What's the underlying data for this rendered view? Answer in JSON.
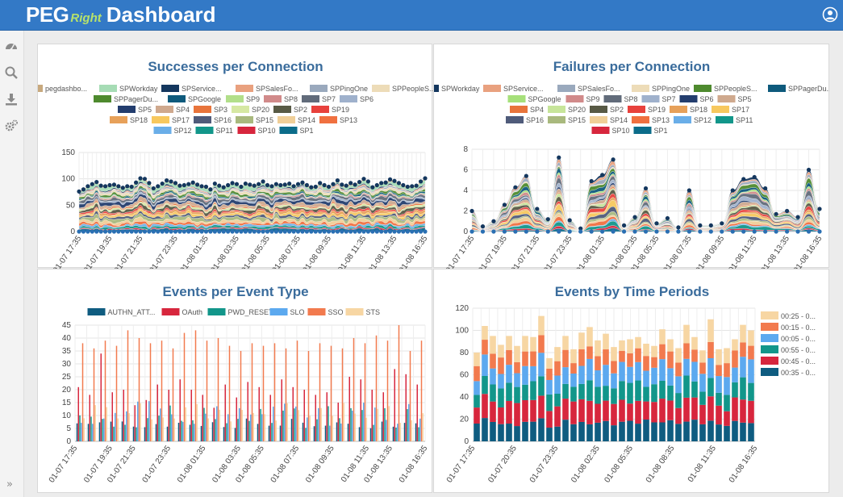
{
  "header": {
    "logo_peg": "PEG",
    "logo_right": "Right",
    "title": "Dashboard",
    "user_icon": "user-circle-icon"
  },
  "sidebar": {
    "items": [
      {
        "icon": "speedometer-icon"
      },
      {
        "icon": "search-icon"
      },
      {
        "icon": "download-icon"
      },
      {
        "icon": "gears-icon"
      }
    ],
    "expand_label": "»"
  },
  "colors": {
    "accent": "#3379c6",
    "title": "#3a6c9c"
  },
  "chart_data": [
    {
      "type": "area",
      "title": "Successes per Connection",
      "legend": [
        "pegdashbo...",
        "SPWorkday",
        "SPService...",
        "SPSalesFo...",
        "SPPingOne",
        "SPPeopleS...",
        "SPPagerDu...",
        "SPGoogle",
        "SP9",
        "SP8",
        "SP7",
        "SP6",
        "SP5",
        "SP4",
        "SP3",
        "SP20",
        "SP2",
        "SP19",
        "SP18",
        "SP17",
        "SP16",
        "SP15",
        "SP14",
        "SP13",
        "SP12",
        "SP11",
        "SP10",
        "SP1"
      ],
      "legend_colors": [
        "#c8a97e",
        "#a6dcb5",
        "#14375e",
        "#e9a17f",
        "#9aa9bd",
        "#eddcb8",
        "#4e8a2e",
        "#0e5a7c",
        "#b2df8a",
        "#d18a8a",
        "#616b7a",
        "#9fb1cc",
        "#233d6e",
        "#cfa98e",
        "#e8743b",
        "#d6e8a3",
        "#585a45",
        "#e8413c",
        "#e7a15a",
        "#f7c85e",
        "#4f5b7a",
        "#a9b97e",
        "#f0cf98",
        "#f07040",
        "#6aaee8",
        "#12968a",
        "#d7263d",
        "#0b6c8a"
      ],
      "x_ticks": [
        "01-07 17:35",
        "01-07 19:35",
        "01-07 21:35",
        "01-07 23:35",
        "01-08 01:35",
        "01-08 03:35",
        "01-08 05:35",
        "01-08 07:35",
        "01-08 09:35",
        "01-08 11:35",
        "01-08 13:35",
        "01-08 16:35"
      ],
      "ylim": [
        0,
        150
      ],
      "y_ticks": [
        0,
        50,
        100,
        150
      ],
      "totals": [
        76,
        80,
        86,
        90,
        94,
        87,
        86,
        88,
        89,
        86,
        83,
        86,
        85,
        93,
        101,
        100,
        92,
        82,
        86,
        91,
        97,
        95,
        92,
        87,
        88,
        90,
        93,
        89,
        86,
        85,
        80,
        91,
        87,
        84,
        88,
        92,
        90,
        85,
        91,
        89,
        87,
        90,
        95,
        88,
        86,
        90,
        88,
        89,
        91,
        86,
        90,
        93,
        88,
        84,
        85,
        92,
        88,
        85,
        90,
        97,
        89,
        87,
        92,
        89,
        94,
        100,
        95,
        84,
        88,
        92,
        93,
        99,
        96,
        92,
        88,
        85,
        86,
        87,
        95,
        101
      ],
      "grid": true
    },
    {
      "type": "area",
      "title": "Failures per Connection",
      "legend": [
        "SPWorkday",
        "SPService...",
        "SPSalesFo...",
        "SPPingOne",
        "SPPeopleS...",
        "SPPagerDu...",
        "SPGoogle",
        "SP9",
        "SP8",
        "SP7",
        "SP6",
        "SP5",
        "SP4",
        "SP20",
        "SP2",
        "SP19",
        "SP18",
        "SP17",
        "SP16",
        "SP15",
        "SP14",
        "SP13",
        "SP12",
        "SP11",
        "SP10",
        "SP1"
      ],
      "legend_colors": [
        "#14375e",
        "#e9a17f",
        "#9aa9bd",
        "#eddcb8",
        "#4e8a2e",
        "#0e5a7c",
        "#a6e07a",
        "#d18a8a",
        "#616b7a",
        "#9fb1cc",
        "#233d6e",
        "#cfa98e",
        "#e8743b",
        "#c7e59a",
        "#585a45",
        "#e8413c",
        "#e7a15a",
        "#f7c85e",
        "#4f5b7a",
        "#a9b97e",
        "#f0cf98",
        "#f07040",
        "#6aaee8",
        "#12968a",
        "#d7263d",
        "#0b6c8a"
      ],
      "x_ticks": [
        "01-07 17:35",
        "01-07 19:35",
        "01-07 21:35",
        "01-07 23:35",
        "01-08 01:35",
        "01-08 03:35",
        "01-08 05:35",
        "01-08 07:35",
        "01-08 09:35",
        "01-08 11:35",
        "01-08 13:35",
        "01-08 16:35"
      ],
      "ylim": [
        0,
        8
      ],
      "y_ticks": [
        0,
        2,
        4,
        6,
        8
      ],
      "totals": [
        2,
        0.5,
        1,
        2.6,
        4.3,
        5.4,
        2.2,
        1.2,
        7.2,
        1.1,
        0.3,
        4.9,
        5.5,
        7.0,
        0.6,
        1.4,
        4.2,
        0.8,
        1.3,
        0.4,
        4.0,
        0.6,
        0.6,
        0.8,
        4.0,
        5.1,
        5.3,
        4.2,
        1.7,
        2.0,
        1.4,
        6.0,
        2.2
      ],
      "grid": true
    },
    {
      "type": "bar",
      "title": "Events per Event Type",
      "legend": [
        "AUTHN_ATT...",
        "OAuth",
        "PWD_RESET",
        "SLO",
        "SSO",
        "STS"
      ],
      "legend_colors": [
        "#0f5c80",
        "#d7263d",
        "#12968a",
        "#5ca9ef",
        "#f27a4e",
        "#f7d6a3"
      ],
      "x_ticks": [
        "01-07 17:35",
        "01-07 19:35",
        "01-07 21:35",
        "01-07 23:35",
        "01-08 01:35",
        "01-08 03:35",
        "01-08 05:35",
        "01-08 07:35",
        "01-08 09:35",
        "01-08 11:35",
        "01-08 13:35",
        "01-08 16:35"
      ],
      "ylim": [
        0,
        45
      ],
      "y_ticks": [
        0,
        5,
        10,
        15,
        20,
        25,
        30,
        35,
        40,
        45
      ],
      "oauth": [
        21,
        18,
        34,
        19,
        20,
        14,
        16,
        22,
        20,
        24,
        20,
        18,
        13,
        22,
        17,
        23,
        21,
        18,
        24,
        21,
        20,
        18,
        19,
        15,
        25,
        24,
        20,
        19,
        28,
        26,
        22
      ],
      "sso": [
        38,
        36,
        39,
        37,
        43,
        40,
        38,
        39,
        36,
        42,
        43,
        39,
        40,
        37,
        35,
        38,
        37,
        38,
        36,
        39,
        35,
        38,
        37,
        36,
        40,
        38,
        41,
        39,
        45,
        35,
        39
      ],
      "grid": true
    },
    {
      "type": "bar",
      "title": "Events by Time Periods",
      "legend": [
        "00:25 - 0...",
        "00:15 - 0...",
        "00:05 - 0...",
        "00:55 - 0...",
        "00:45 - 0...",
        "00:35 - 0..."
      ],
      "legend_colors": [
        "#f7d6a3",
        "#f27a4e",
        "#5ca9ef",
        "#12968a",
        "#d7263d",
        "#0f5c80"
      ],
      "x_ticks": [
        "01-07 17:35",
        "01-07 20:35",
        "01-07 23:35",
        "01-08 02:35",
        "01-08 05:35",
        "01-08 08:35",
        "01-08 11:35",
        "01-08 16:35"
      ],
      "ylim": [
        0,
        120
      ],
      "y_ticks": [
        0,
        20,
        40,
        60,
        80,
        100,
        120
      ],
      "totals": [
        80,
        104,
        95,
        87,
        95,
        86,
        95,
        94,
        113,
        75,
        85,
        95,
        83,
        98,
        103,
        91,
        97,
        85,
        91,
        92,
        94,
        88,
        86,
        101,
        92,
        84,
        105,
        94,
        82,
        110,
        83,
        84,
        92,
        105,
        100
      ],
      "grid": true
    }
  ]
}
